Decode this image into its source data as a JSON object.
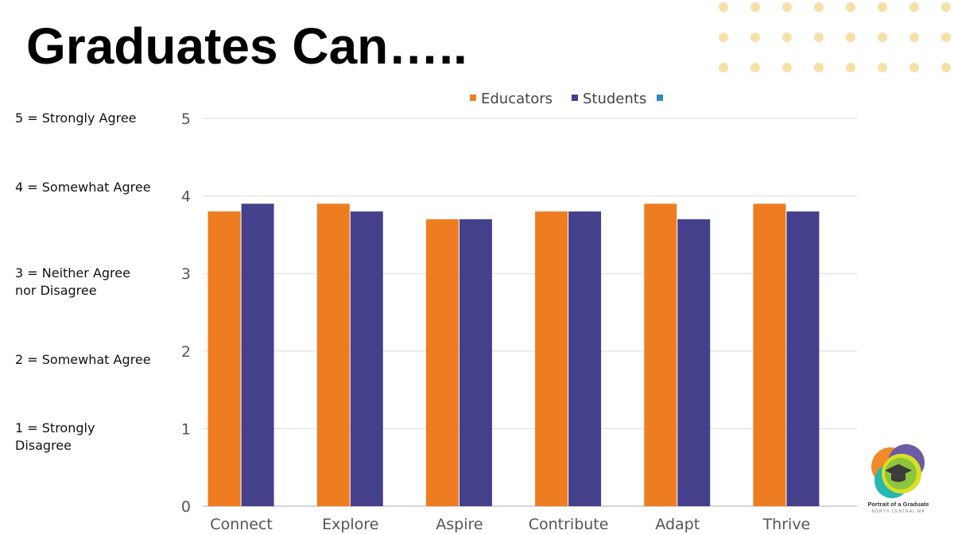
{
  "chart_data": {
    "type": "bar",
    "title": "Graduates Can…..",
    "categories": [
      "Connect",
      "Explore",
      "Aspire",
      "Contribute",
      "Adapt",
      "Thrive"
    ],
    "series": [
      {
        "name": "Educators",
        "color": "#ee7d22",
        "values": [
          3.8,
          3.9,
          3.7,
          3.8,
          3.9,
          3.9
        ]
      },
      {
        "name": "Students",
        "color": "#45408c",
        "values": [
          3.9,
          3.8,
          3.7,
          3.8,
          3.7,
          3.8
        ]
      }
    ],
    "ylim": [
      0,
      5
    ],
    "yticks": [
      0,
      1,
      2,
      3,
      4,
      5
    ],
    "grid": true,
    "legend": "top"
  },
  "scale_labels": [
    [
      "5 = Strongly Agree"
    ],
    [
      "4 = Somewhat Agree"
    ],
    [
      "3 = Neither Agree",
      "nor Disagree"
    ],
    [
      "2 = Somewhat Agree"
    ],
    [
      "1 = Strongly",
      "Disagree"
    ]
  ],
  "logo": {
    "title": "Portrait of a Graduate",
    "subtitle": "NORTH CENTRAL MA"
  }
}
